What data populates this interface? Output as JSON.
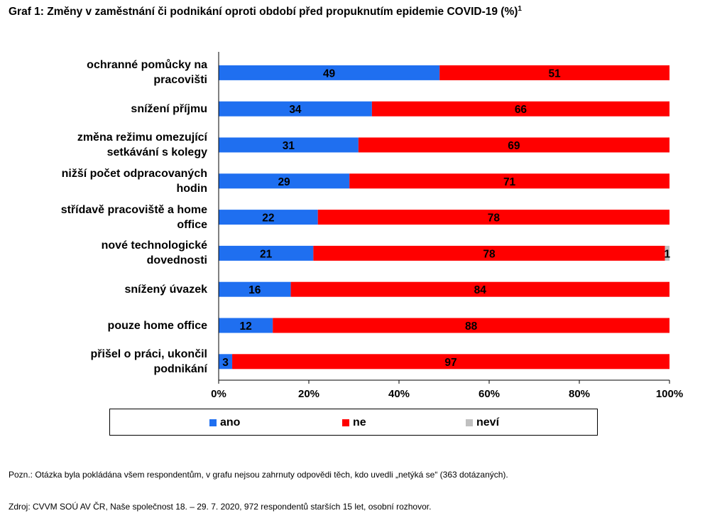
{
  "title": "Graf 1: Změny v zaměstnání či podnikání oproti období před propuknutím epidemie COVID-19 (%)",
  "title_sup": "1",
  "colors": {
    "ano": "#1f6ff0",
    "ne": "#ff0000",
    "nevi": "#c0c0c0"
  },
  "chart_data": {
    "type": "bar",
    "orientation": "horizontal",
    "stacked": "percent",
    "categories": [
      "ochranné pomůcky na pracovišti",
      "snížení příjmu",
      "změna režimu omezující setkávání s kolegy",
      "nižší počet odpracovaných hodin",
      "střídavě pracoviště a home office",
      "nové technologické dovednosti",
      "snížený úvazek",
      "pouze home office",
      "přišel o práci, ukončil podnikání"
    ],
    "series": [
      {
        "name": "ano",
        "values": [
          49,
          34,
          31,
          29,
          22,
          21,
          16,
          12,
          3
        ]
      },
      {
        "name": "ne",
        "values": [
          51,
          66,
          69,
          71,
          78,
          78,
          84,
          88,
          97
        ]
      },
      {
        "name": "neví",
        "values": [
          0,
          0,
          0,
          0,
          0,
          1,
          0,
          0,
          0
        ]
      }
    ],
    "xlim": [
      0,
      100
    ],
    "xticks": [
      "0%",
      "20%",
      "40%",
      "60%",
      "80%",
      "100%"
    ],
    "grid": false,
    "legend_position": "bottom"
  },
  "category_lines": [
    [
      "ochranné pomůcky na",
      "pracovišti"
    ],
    [
      "snížení příjmu"
    ],
    [
      "změna režimu omezující",
      "setkávání s kolegy"
    ],
    [
      "nižší počet odpracovaných",
      "hodin"
    ],
    [
      "střídavě pracoviště a home",
      "office"
    ],
    [
      "nové technologické",
      "dovednosti"
    ],
    [
      "snížený úvazek"
    ],
    [
      "pouze home office"
    ],
    [
      "přišel o práci, ukončil",
      "podnikání"
    ]
  ],
  "legend": {
    "ano": "ano",
    "ne": "ne",
    "nevi": "neví"
  },
  "note": "Pozn.: Otázka byla pokládána všem respondentům, v grafu nejsou zahrnuty odpovědi těch, kdo uvedli „netýká se“ (363 dotázaných).",
  "source": "Zdroj: CVVM SOÚ AV ČR, Naše společnost 18. – 29. 7. 2020, 972 respondentů starších 15 let, osobní rozhovor."
}
